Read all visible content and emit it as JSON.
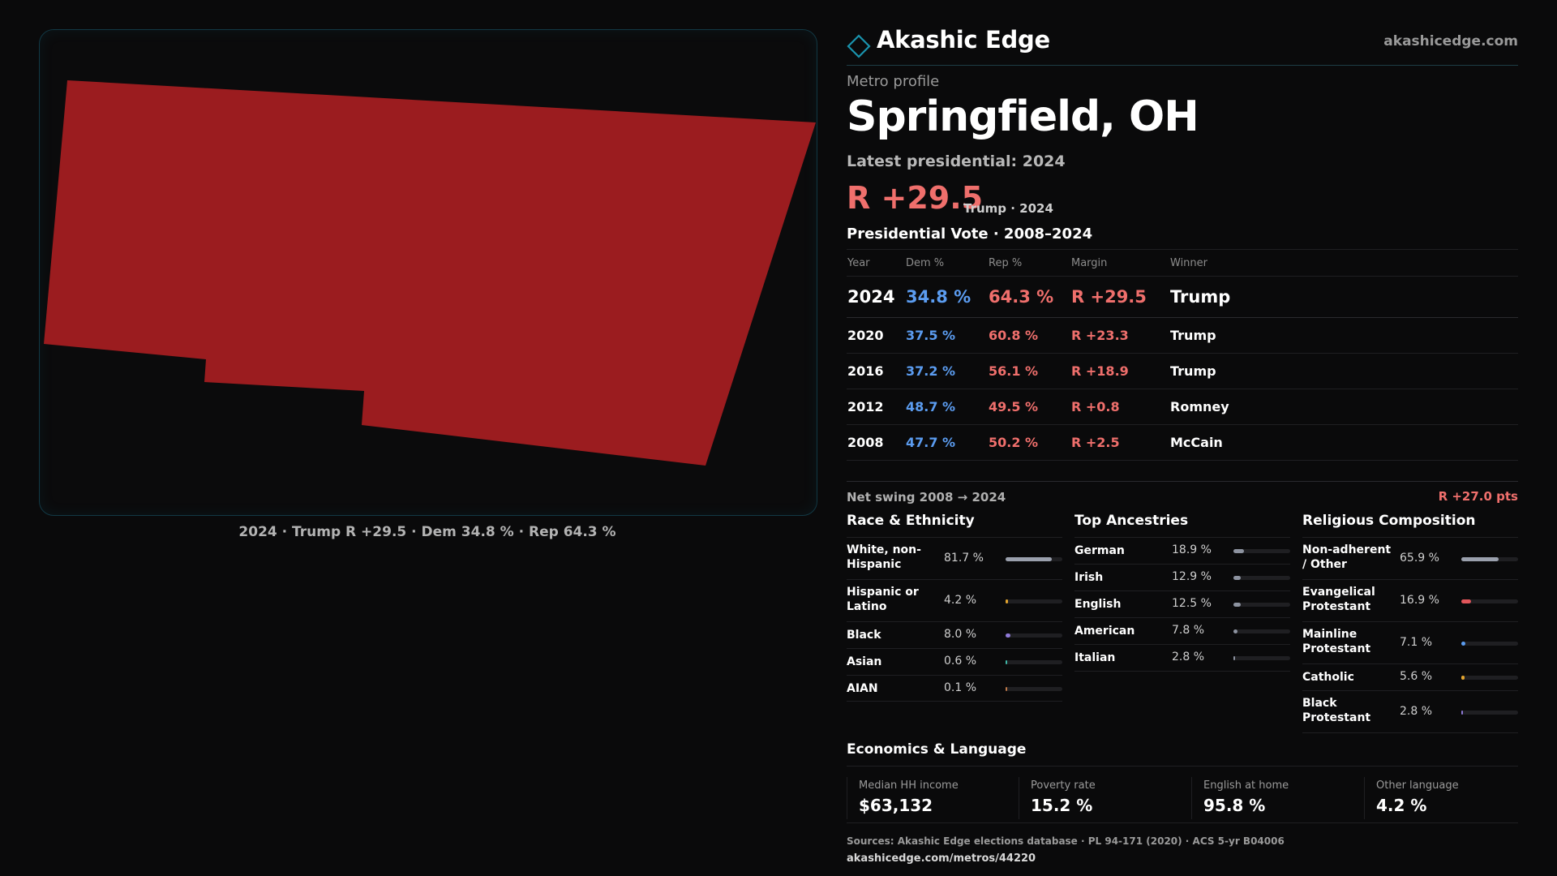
{
  "brand": {
    "name": "Akashic Edge",
    "url": "akashicedge.com",
    "icon": "diamond-icon",
    "accent": "#1a93ad"
  },
  "map": {
    "caption": "2024 · Trump R +29.5 · Dem 34.8 % · Rep 64.3 %",
    "fill": "#9b1c1f"
  },
  "profile": {
    "label": "Metro profile",
    "city": "Springfield, OH",
    "latest_label": "Latest presidential: 2024",
    "margin": "R +29.5",
    "margin_sub": "Trump · 2024"
  },
  "vote": {
    "title": "Presidential Vote · 2008–2024",
    "headers": [
      "Year",
      "Dem %",
      "Rep %",
      "Margin",
      "Winner"
    ],
    "rows": [
      {
        "year": "2024",
        "dem": "34.8 %",
        "rep": "64.3 %",
        "margin": "R +29.5",
        "winner": "Trump"
      },
      {
        "year": "2020",
        "dem": "37.5 %",
        "rep": "60.8 %",
        "margin": "R +23.3",
        "winner": "Trump"
      },
      {
        "year": "2016",
        "dem": "37.2 %",
        "rep": "56.1 %",
        "margin": "R +18.9",
        "winner": "Trump"
      },
      {
        "year": "2012",
        "dem": "48.7 %",
        "rep": "49.5 %",
        "margin": "R +0.8",
        "winner": "Romney"
      },
      {
        "year": "2008",
        "dem": "47.7 %",
        "rep": "50.2 %",
        "margin": "R +2.5",
        "winner": "McCain"
      }
    ],
    "swing_label": "Net swing 2008 → 2024",
    "swing_value": "R +27.0 pts"
  },
  "race": {
    "title": "Race & Ethnicity",
    "items": [
      {
        "label": "White, non-Hispanic",
        "value": "81.7 %",
        "pct": 81.7,
        "color": "#9aa0ad"
      },
      {
        "label": "Hispanic or Latino",
        "value": "4.2 %",
        "pct": 4.2,
        "color": "#e3a52f"
      },
      {
        "label": "Black",
        "value": "8.0 %",
        "pct": 8.0,
        "color": "#8f7ad8"
      },
      {
        "label": "Asian",
        "value": "0.6 %",
        "pct": 0.6,
        "color": "#3fb8a8"
      },
      {
        "label": "AIAN",
        "value": "0.1 %",
        "pct": 0.1,
        "color": "#c07a4a"
      }
    ]
  },
  "ancestry": {
    "title": "Top Ancestries",
    "items": [
      {
        "label": "German",
        "value": "18.9 %",
        "pct": 18.9,
        "color": "#8d93a0"
      },
      {
        "label": "Irish",
        "value": "12.9 %",
        "pct": 12.9,
        "color": "#8d93a0"
      },
      {
        "label": "English",
        "value": "12.5 %",
        "pct": 12.5,
        "color": "#8d93a0"
      },
      {
        "label": "American",
        "value": "7.8 %",
        "pct": 7.8,
        "color": "#8d93a0"
      },
      {
        "label": "Italian",
        "value": "2.8 %",
        "pct": 2.8,
        "color": "#8d93a0"
      }
    ]
  },
  "religion": {
    "title": "Religious Composition",
    "items": [
      {
        "label": "Non-adherent / Other",
        "value": "65.9 %",
        "pct": 65.9,
        "color": "#9aa0ad"
      },
      {
        "label": "Evangelical Protestant",
        "value": "16.9 %",
        "pct": 16.9,
        "color": "#e0555a"
      },
      {
        "label": "Mainline Protestant",
        "value": "7.1 %",
        "pct": 7.1,
        "color": "#5b9cf0"
      },
      {
        "label": "Catholic",
        "value": "5.6 %",
        "pct": 5.6,
        "color": "#e3a52f"
      },
      {
        "label": "Black Protestant",
        "value": "2.8 %",
        "pct": 2.8,
        "color": "#8f7ad8"
      }
    ]
  },
  "economics": {
    "title": "Economics & Language",
    "items": [
      {
        "label": "Median HH income",
        "value": "$63,132"
      },
      {
        "label": "Poverty rate",
        "value": "15.2 %"
      },
      {
        "label": "English at home",
        "value": "95.8 %"
      },
      {
        "label": "Other language",
        "value": "4.2 %"
      }
    ]
  },
  "footer": {
    "sources": "Sources: Akashic Edge elections database · PL 94-171 (2020) · ACS 5-yr B04006",
    "url": "akashicedge.com/metros/44220"
  }
}
